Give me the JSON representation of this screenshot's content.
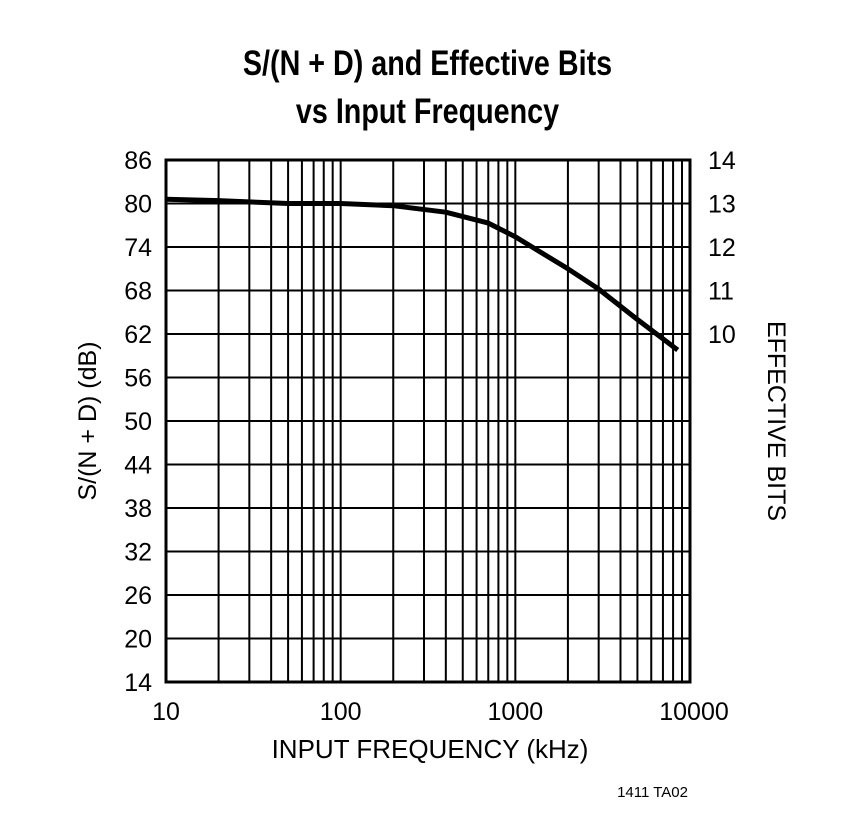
{
  "chart_data": {
    "type": "line",
    "title": "S/(N + D) and Effective Bits vs Input Frequency",
    "title_lines": [
      "S/(N + D) and Effective Bits",
      "vs Input Frequency"
    ],
    "xlabel": "INPUT FREQUENCY (kHz)",
    "ylabel": "S/(N + D) (dB)",
    "y2label": "EFFECTIVE BITS",
    "xscale": "log",
    "xlim": [
      10,
      10000
    ],
    "ylim": [
      14,
      86
    ],
    "x_ticks": [
      "10",
      "100",
      "1000",
      "10000"
    ],
    "y_ticks": [
      "86",
      "80",
      "74",
      "68",
      "62",
      "56",
      "50",
      "44",
      "38",
      "32",
      "26",
      "20",
      "14"
    ],
    "y2_ticks": [
      "14",
      "13",
      "12",
      "11",
      "10"
    ],
    "grid": true,
    "series": [
      {
        "name": "S/(N + D)",
        "x": [
          10,
          20,
          50,
          100,
          200,
          400,
          700,
          1000,
          2000,
          3000,
          5000,
          8500
        ],
        "values": [
          80.6,
          80.4,
          80.0,
          80.0,
          79.7,
          78.8,
          77.3,
          75.4,
          71.0,
          68.2,
          64.0,
          59.8
        ]
      }
    ],
    "annotation": "1411 TA02"
  }
}
